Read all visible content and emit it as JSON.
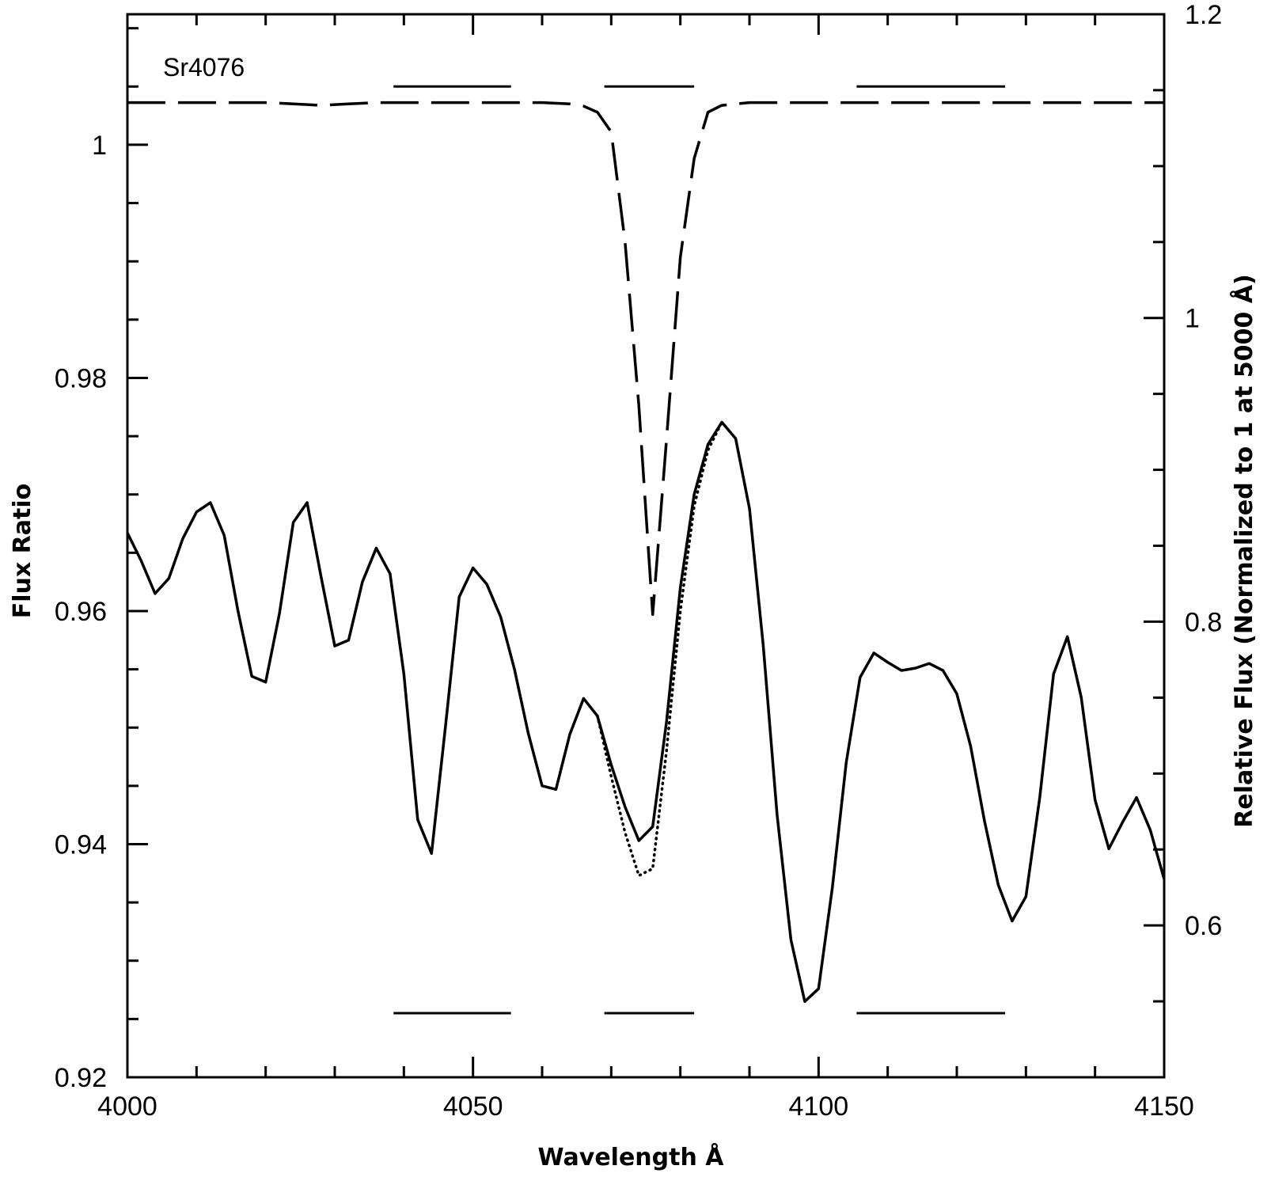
{
  "chart_data": {
    "type": "line",
    "title": "",
    "annotation": "Sr4076",
    "xlabel": "Wavelength Å",
    "ylabel": "Flux Ratio",
    "y2label": "Relative Flux (Normalized to 1 at 5000 Å)",
    "xlim": [
      4000,
      4150
    ],
    "ylim": [
      0.92,
      1.0112
    ],
    "y2lim": [
      0.5,
      1.2
    ],
    "x_ticks": [
      4000,
      4050,
      4100,
      4150
    ],
    "x_tick_labels": [
      "4000",
      "4050",
      "4100",
      "4150"
    ],
    "y_ticks": [
      0.92,
      0.94,
      0.96,
      0.98,
      1.0
    ],
    "y_tick_labels": [
      "0.92",
      "0.94",
      "0.96",
      "0.98",
      "1"
    ],
    "y2_ticks": [
      0.6,
      0.8,
      1.0,
      1.2
    ],
    "y2_tick_labels": [
      "0.6",
      "0.8",
      "1",
      "1.2"
    ],
    "grid": false,
    "series": [
      {
        "style": "solid",
        "axis": "left",
        "x": [
          4000,
          4002,
          4004,
          4006,
          4008,
          4010,
          4012,
          4014,
          4016,
          4018,
          4020,
          4022,
          4024,
          4026,
          4028,
          4030,
          4032,
          4034,
          4036,
          4038,
          4040,
          4042,
          4044,
          4046,
          4048,
          4050,
          4052,
          4054,
          4056,
          4058,
          4060,
          4062,
          4064,
          4066,
          4068,
          4070,
          4072,
          4074,
          4076,
          4078,
          4080,
          4082,
          4084,
          4086,
          4088,
          4090,
          4092,
          4094,
          4096,
          4098,
          4100,
          4102,
          4104,
          4106,
          4108,
          4110,
          4112,
          4114,
          4116,
          4118,
          4120,
          4122,
          4124,
          4126,
          4128,
          4130,
          4132,
          4134,
          4136,
          4138,
          4140,
          4142,
          4144,
          4146,
          4148,
          4150
        ],
        "y": [
          0.9667,
          0.9643,
          0.9615,
          0.9628,
          0.9662,
          0.9685,
          0.9693,
          0.9665,
          0.96,
          0.9544,
          0.9539,
          0.9598,
          0.9676,
          0.9693,
          0.963,
          0.957,
          0.9575,
          0.9625,
          0.9654,
          0.9632,
          0.9546,
          0.9421,
          0.9392,
          0.95,
          0.9612,
          0.9637,
          0.9623,
          0.9595,
          0.955,
          0.9495,
          0.945,
          0.9447,
          0.9494,
          0.9525,
          0.951,
          0.9468,
          0.9432,
          0.9403,
          0.9415,
          0.9505,
          0.962,
          0.97,
          0.9743,
          0.9762,
          0.9748,
          0.9688,
          0.957,
          0.9425,
          0.9318,
          0.9265,
          0.9276,
          0.9363,
          0.947,
          0.9543,
          0.9564,
          0.9556,
          0.9549,
          0.9551,
          0.9555,
          0.9549,
          0.9529,
          0.9484,
          0.942,
          0.9365,
          0.9334,
          0.9355,
          0.944,
          0.9546,
          0.9578,
          0.9526,
          0.9438,
          0.9396,
          0.9419,
          0.944,
          0.9412,
          0.937
        ]
      },
      {
        "style": "dotted",
        "axis": "left",
        "x": [
          4068,
          4070,
          4072,
          4074,
          4076,
          4078,
          4080,
          4082,
          4084,
          4086
        ],
        "y": [
          0.951,
          0.9458,
          0.941,
          0.9373,
          0.9379,
          0.948,
          0.96,
          0.969,
          0.9738,
          0.9762
        ]
      },
      {
        "style": "dashed",
        "axis": "right",
        "x": [
          4000,
          4010,
          4020,
          4024,
          4028,
          4032,
          4036,
          4040,
          4050,
          4060,
          4064,
          4066,
          4068,
          4070,
          4072,
          4074,
          4076,
          4078,
          4080,
          4082,
          4084,
          4086,
          4090,
          4100,
          4110,
          4120,
          4130,
          4140,
          4150
        ],
        "y": [
          1.1418,
          1.1418,
          1.1418,
          1.141,
          1.14,
          1.141,
          1.1418,
          1.1418,
          1.1418,
          1.1418,
          1.141,
          1.1395,
          1.1355,
          1.1225,
          1.05,
          0.942,
          0.8047,
          0.92,
          1.04,
          1.105,
          1.1355,
          1.14,
          1.1418,
          1.1418,
          1.1418,
          1.1418,
          1.1418,
          1.1418,
          1.1418
        ]
      }
    ],
    "bands_top": [
      [
        4038.5,
        4055.5
      ],
      [
        4069.0,
        4082.0
      ],
      [
        4105.5,
        4127.0
      ]
    ],
    "bands_top_level": 1.005,
    "bands_bottom": [
      [
        4038.5,
        4055.5
      ],
      [
        4069.0,
        4082.0
      ],
      [
        4105.5,
        4127.0
      ]
    ],
    "bands_bottom_level": 0.9255
  }
}
